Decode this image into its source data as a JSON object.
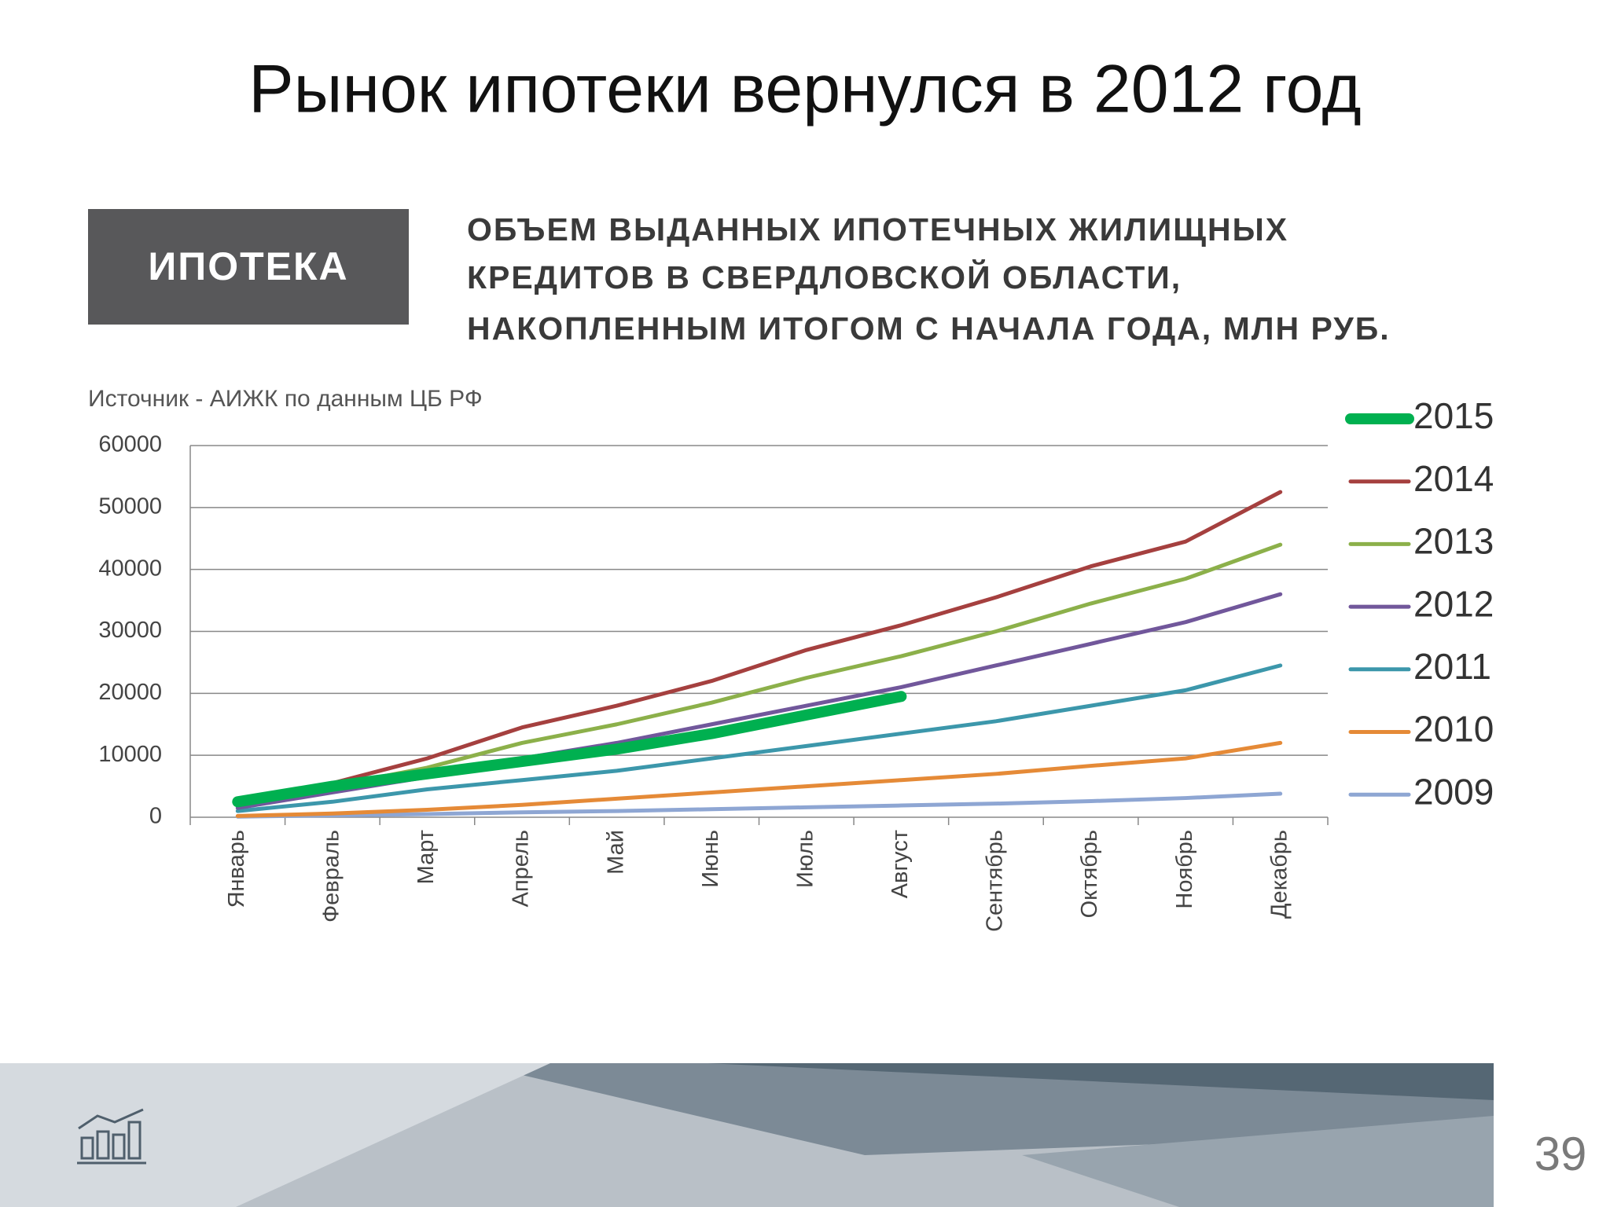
{
  "slide": {
    "badge": "ИПОТЕКА",
    "subtitle": [
      "ОБЪЕМ ВЫДАННЫХ ИПОТЕЧНЫХ ЖИЛИЩНЫХ",
      "КРЕДИТОВ В СВЕРДЛОВСКОЙ ОБЛАСТИ,",
      "НАКОПЛЕННЫМ ИТОГОМ С НАЧАЛА ГОДА, МЛН РУБ."
    ],
    "source": "Источник - АИЖК по данным ЦБ РФ",
    "page_number": "39"
  },
  "chart_data": {
    "type": "line",
    "title": "Рынок ипотеки вернулся в 2012 год",
    "categories": [
      "Январь",
      "Февраль",
      "Март",
      "Апрель",
      "Май",
      "Июнь",
      "Июль",
      "Август",
      "Сентябрь",
      "Октябрь",
      "Ноябрь",
      "Декабрь"
    ],
    "ylim": [
      0,
      60000
    ],
    "yticks": [
      0,
      10000,
      20000,
      30000,
      40000,
      50000,
      60000
    ],
    "grid": true,
    "legend": "right",
    "series": [
      {
        "name": "2015",
        "color": "#00b050",
        "values": [
          2500,
          5000,
          7000,
          9000,
          11000,
          13500,
          16500,
          19500,
          null,
          null,
          null,
          null
        ]
      },
      {
        "name": "2014",
        "color": "#a5403f",
        "values": [
          2000,
          5500,
          9500,
          14500,
          18000,
          22000,
          27000,
          31000,
          35500,
          40500,
          44500,
          52500
        ]
      },
      {
        "name": "2013",
        "color": "#8cb04a",
        "values": [
          2500,
          5000,
          8000,
          12000,
          15000,
          18500,
          22500,
          26000,
          30000,
          34500,
          38500,
          44000
        ]
      },
      {
        "name": "2012",
        "color": "#71579b",
        "values": [
          1500,
          4000,
          6500,
          9500,
          12000,
          15000,
          18000,
          21000,
          24500,
          28000,
          31500,
          36000
        ]
      },
      {
        "name": "2011",
        "color": "#3c97ab",
        "values": [
          1000,
          2500,
          4500,
          6000,
          7500,
          9500,
          11500,
          13500,
          15500,
          18000,
          20500,
          24500
        ]
      },
      {
        "name": "2010",
        "color": "#e58a37",
        "values": [
          200,
          600,
          1200,
          2000,
          3000,
          4000,
          5000,
          6000,
          7000,
          8300,
          9500,
          12000
        ]
      },
      {
        "name": "2009",
        "color": "#8ea6d3",
        "values": [
          100,
          300,
          500,
          800,
          1000,
          1300,
          1600,
          1900,
          2200,
          2600,
          3100,
          3800
        ]
      }
    ]
  }
}
